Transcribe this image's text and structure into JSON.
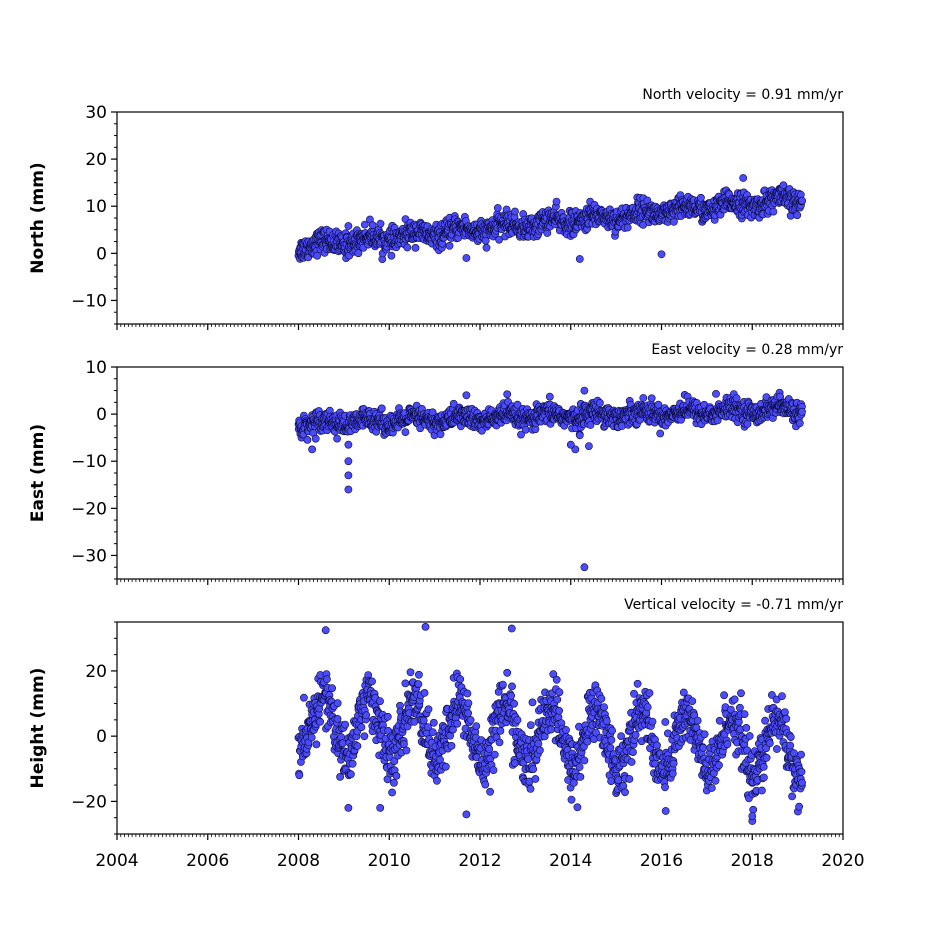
{
  "chart_data": [
    {
      "type": "scatter",
      "title": "North velocity = 0.91 mm/yr",
      "ylabel": "North (mm)",
      "xlim": [
        2004,
        2020
      ],
      "ylim": [
        -15,
        30
      ],
      "yticks": [
        -10,
        0,
        10,
        20,
        30
      ],
      "ytick_labels": [
        "−10",
        "0",
        "10",
        "20",
        "30"
      ],
      "x_range": [
        2008.0,
        2019.1
      ],
      "trend": {
        "start": 1.5,
        "slope": 0.91,
        "seasonal_amplitude": 0.8
      },
      "scatter_sd": 1.2,
      "outliers": [
        {
          "x": 2014.2,
          "y": -1.2
        },
        {
          "x": 2016.0,
          "y": -0.2
        },
        {
          "x": 2017.8,
          "y": 16.0
        },
        {
          "x": 2009.1,
          "y": 5.8
        },
        {
          "x": 2011.7,
          "y": -1.0
        }
      ]
    },
    {
      "type": "scatter",
      "title": "East velocity = 0.28 mm/yr",
      "ylabel": "East (mm)",
      "xlim": [
        2004,
        2020
      ],
      "ylim": [
        -35,
        10
      ],
      "yticks": [
        -30,
        -20,
        -10,
        0,
        10
      ],
      "ytick_labels": [
        "−30",
        "−20",
        "−10",
        "0",
        "10"
      ],
      "x_range": [
        2008.0,
        2019.1
      ],
      "trend": {
        "start": -2.0,
        "slope": 0.28,
        "seasonal_amplitude": 0.7
      },
      "scatter_sd": 1.1,
      "outliers": [
        {
          "x": 2009.1,
          "y": -10.0
        },
        {
          "x": 2009.1,
          "y": -13.0
        },
        {
          "x": 2009.1,
          "y": -16.0
        },
        {
          "x": 2009.1,
          "y": -6.5
        },
        {
          "x": 2008.3,
          "y": -7.5
        },
        {
          "x": 2014.3,
          "y": -32.5
        },
        {
          "x": 2014.3,
          "y": 5.0
        },
        {
          "x": 2014.1,
          "y": -7.5
        },
        {
          "x": 2014.0,
          "y": -6.5
        },
        {
          "x": 2014.4,
          "y": -6.8
        },
        {
          "x": 2014.2,
          "y": -4.5
        },
        {
          "x": 2011.7,
          "y": 4.0
        },
        {
          "x": 2012.6,
          "y": 4.2
        },
        {
          "x": 2017.2,
          "y": 4.3
        }
      ]
    },
    {
      "type": "scatter",
      "title": "Vertical velocity = -0.71 mm/yr",
      "ylabel": "Height (mm)",
      "xlabel": "",
      "xlim": [
        2004,
        2020
      ],
      "ylim": [
        -30,
        35
      ],
      "yticks": [
        -20,
        0,
        20
      ],
      "ytick_labels": [
        "−20",
        "0",
        "20"
      ],
      "xticks": [
        2004,
        2006,
        2008,
        2010,
        2012,
        2014,
        2016,
        2018,
        2020
      ],
      "xtick_labels": [
        "2004",
        "2006",
        "2008",
        "2010",
        "2012",
        "2014",
        "2016",
        "2018",
        "2020"
      ],
      "x_range": [
        2008.0,
        2019.1
      ],
      "trend": {
        "start": 4.0,
        "slope": -0.71,
        "seasonal_amplitude": 9.0
      },
      "scatter_sd": 4.5,
      "outliers": [
        {
          "x": 2008.6,
          "y": 32.5
        },
        {
          "x": 2010.8,
          "y": 33.5
        },
        {
          "x": 2012.7,
          "y": 33.0
        },
        {
          "x": 2011.7,
          "y": -24.0
        },
        {
          "x": 2009.1,
          "y": -22.0
        },
        {
          "x": 2018.0,
          "y": -26.0
        },
        {
          "x": 2018.0,
          "y": -24.5
        },
        {
          "x": 2009.8,
          "y": -22.0
        }
      ]
    }
  ],
  "marker_color": "#4b4bff",
  "marker_edge_color": "#0a0a3a"
}
